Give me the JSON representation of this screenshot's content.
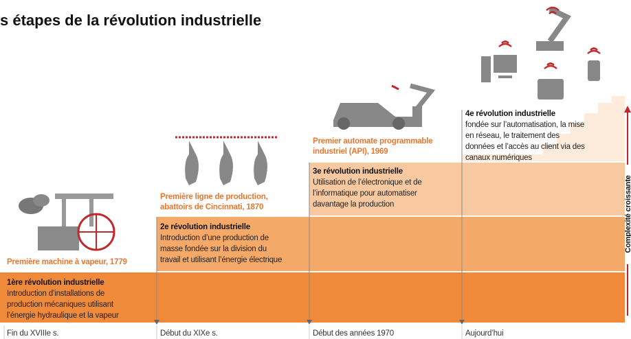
{
  "title": "s étapes de la révolution industrielle",
  "axis_label": "Complexité croissante",
  "eras": [
    {
      "caption": [
        "Première machine à vapeur, 1779"
      ],
      "heading": "1ère révolution industrielle",
      "description": [
        "Introduction d’installations de",
        "production mécaniques utilisant",
        "l’énergie hydraulique et la vapeur"
      ],
      "date": "Fin du XVIIIe s."
    },
    {
      "caption": [
        "Première ligne de production,",
        "abattoirs de Cincinnati, 1870"
      ],
      "heading": "2e révolution industrielle",
      "description": [
        "Introduction d’une production de",
        "masse fondée sur la division du",
        "travail et utilisant l’énergie électrique"
      ],
      "date": "Début du XIXe s."
    },
    {
      "caption": [
        "Premier automate programmable",
        "industriel (API), 1969"
      ],
      "heading": "3e révolution industrielle",
      "description": [
        "Utilisation de l’électronique et de",
        "l’informatique pour automatiser",
        "davantage la production"
      ],
      "date": "Début des années 1970"
    },
    {
      "caption": [],
      "heading": "4e révolution industrielle",
      "description": [
        "fondée sur l’automatisation, la mise",
        "en réseau, le traitement des",
        "données et l’accès au client via des",
        "canaux numériques"
      ],
      "date": "Aujourd’hui"
    }
  ]
}
